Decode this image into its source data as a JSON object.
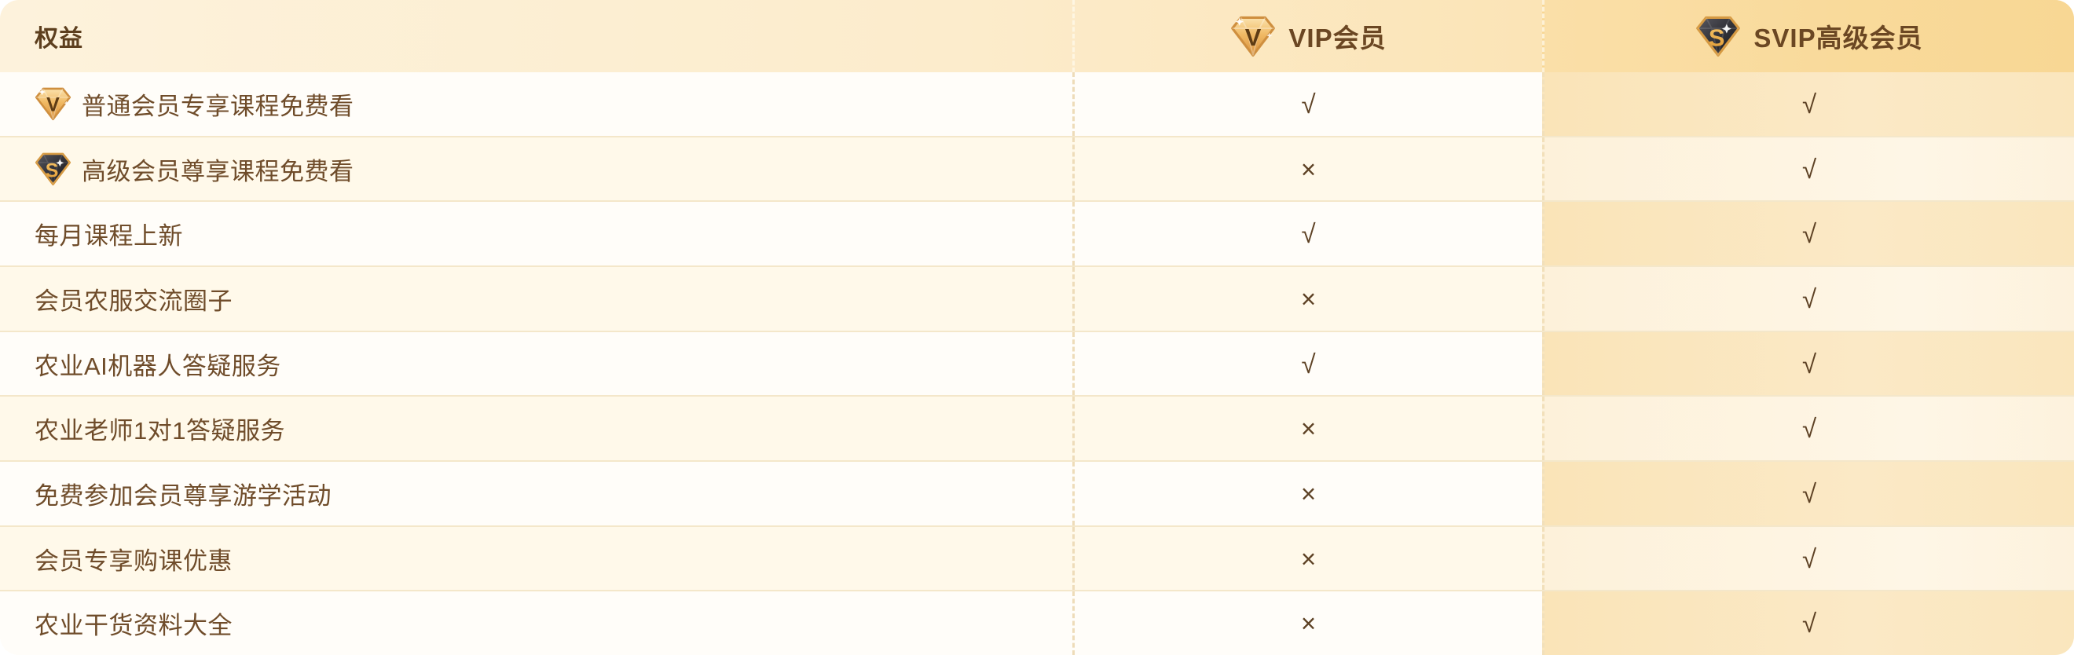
{
  "header": {
    "benefit_column_label": "权益",
    "vip_column": {
      "label": "VIP会员",
      "icon": "vip-diamond-icon"
    },
    "svip_column": {
      "label": "SVIP高级会员",
      "icon": "svip-diamond-icon"
    }
  },
  "marks": {
    "included": "√",
    "excluded": "×"
  },
  "rows": [
    {
      "benefit": "普通会员专享课程免费看",
      "icon": "vip-diamond-icon",
      "vip": "√",
      "svip": "√"
    },
    {
      "benefit": "高级会员尊享课程免费看",
      "icon": "svip-diamond-icon",
      "vip": "×",
      "svip": "√"
    },
    {
      "benefit": "每月课程上新",
      "icon": null,
      "vip": "√",
      "svip": "√"
    },
    {
      "benefit": "会员农服交流圈子",
      "icon": null,
      "vip": "×",
      "svip": "√"
    },
    {
      "benefit": "农业AI机器人答疑服务",
      "icon": null,
      "vip": "√",
      "svip": "√"
    },
    {
      "benefit": "农业老师1对1答疑服务",
      "icon": null,
      "vip": "×",
      "svip": "√"
    },
    {
      "benefit": "免费参加会员尊享游学活动",
      "icon": null,
      "vip": "×",
      "svip": "√"
    },
    {
      "benefit": "会员专享购课优惠",
      "icon": null,
      "vip": "×",
      "svip": "√"
    },
    {
      "benefit": "农业干货资料大全",
      "icon": null,
      "vip": "×",
      "svip": "√"
    }
  ],
  "colors": {
    "header_cream": "#fdf2dc",
    "header_gold": "#f9da9b",
    "row_white": "#fffdf9",
    "row_cream": "#fff9ea",
    "svip_row_gold": "#fae4b8",
    "svip_row_light": "#fdf1da",
    "divider": "#f4e7ca",
    "text_brown": "#6f4c2a",
    "heading_brown": "#5d3f1e",
    "mark_brown": "#5d4124",
    "gem_gold": "#f0b964",
    "gem_dark": "#38383f"
  }
}
